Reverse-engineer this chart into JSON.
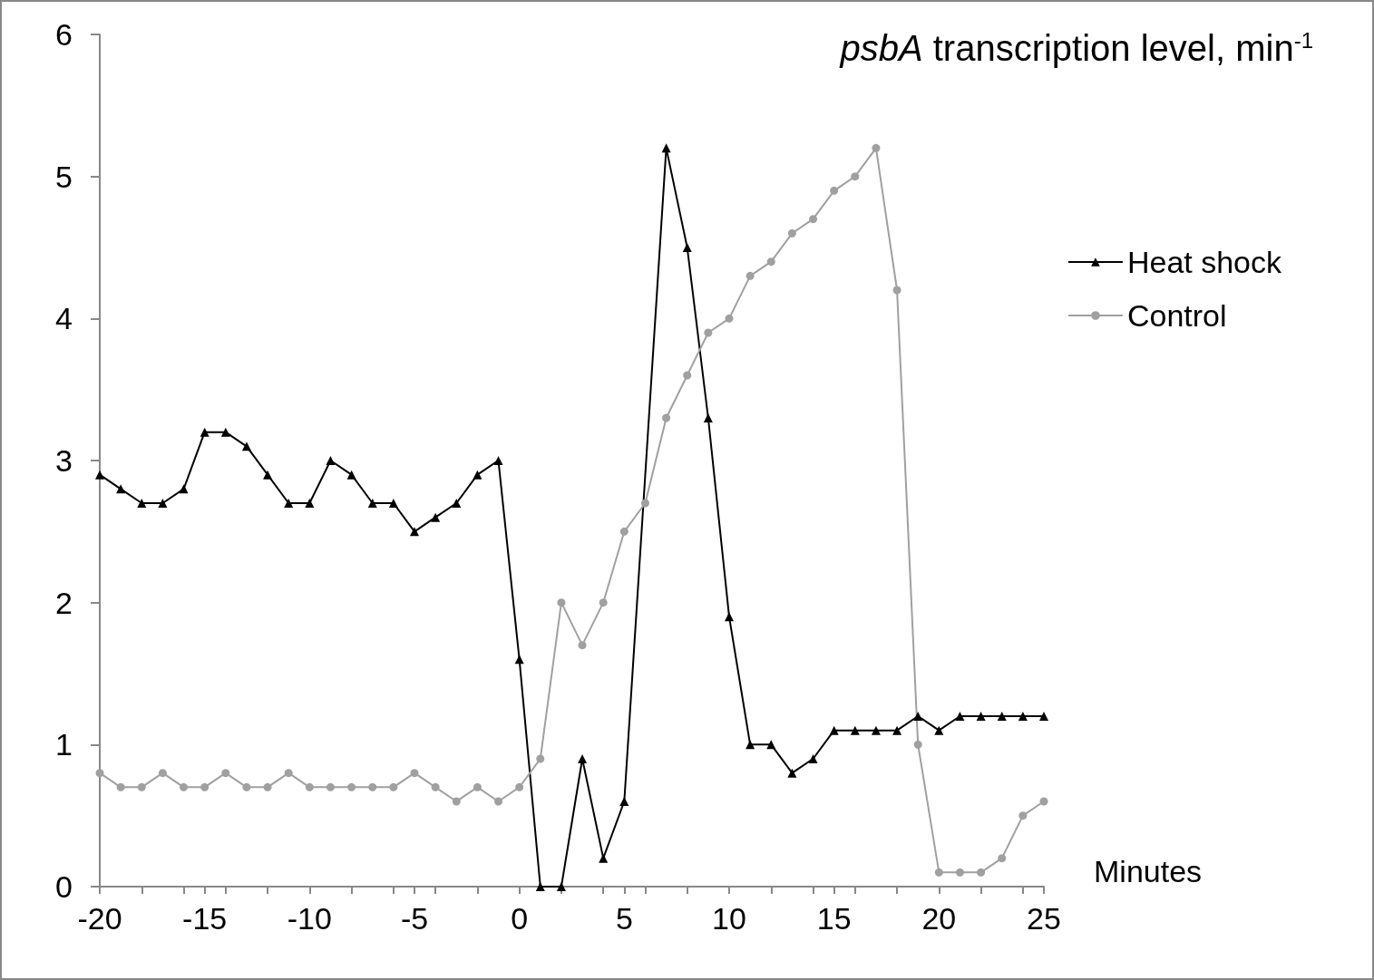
{
  "chart_data": {
    "type": "line",
    "title": "psbA transcription level, min$^{-1}$",
    "xlabel": "Minutes",
    "x": [
      -20,
      -19,
      -18,
      -17,
      -16,
      -15,
      -14,
      -13,
      -12,
      -11,
      -10,
      -9,
      -8,
      -7,
      -6,
      -5,
      -4,
      -3,
      -2,
      -1,
      0,
      1,
      2,
      3,
      4,
      5,
      6,
      7,
      8,
      9,
      10,
      11,
      12,
      13,
      14,
      15,
      16,
      17,
      18,
      19,
      20,
      21,
      22,
      23,
      24,
      25
    ],
    "series": [
      {
        "name": "Heat shock",
        "color": "#000000",
        "marker": "triangle",
        "values": [
          2.9,
          2.8,
          2.7,
          2.7,
          2.8,
          3.2,
          3.2,
          3.1,
          2.9,
          2.7,
          2.7,
          3.0,
          2.9,
          2.7,
          2.7,
          2.5,
          2.6,
          2.7,
          2.9,
          3.0,
          1.6,
          0,
          0,
          0.9,
          0.2,
          0.6,
          null,
          5.2,
          4.5,
          3.3,
          1.9,
          1.0,
          1.0,
          0.8,
          0.9,
          1.1,
          1.1,
          1.1,
          1.1,
          1.2,
          1.1,
          1.2,
          1.2,
          1.2,
          1.2,
          1.2
        ]
      },
      {
        "name": "Control",
        "color": "#a0a0a0",
        "marker": "circle",
        "values": [
          0.8,
          0.7,
          0.7,
          0.8,
          0.7,
          0.7,
          0.8,
          0.7,
          0.7,
          0.8,
          0.7,
          0.7,
          0.7,
          0.7,
          0.7,
          0.8,
          0.7,
          0.6,
          0.7,
          0.6,
          0.7,
          0.9,
          2.0,
          1.7,
          2.0,
          2.5,
          2.7,
          3.3,
          3.6,
          3.9,
          4.0,
          4.3,
          4.4,
          4.6,
          4.7,
          4.9,
          5.0,
          5.2,
          4.2,
          1.0,
          0.1,
          0.1,
          0.1,
          0.2,
          0.5,
          0.6
        ]
      }
    ],
    "xlim": [
      -20,
      25
    ],
    "xticks": [
      -20,
      -15,
      -10,
      -5,
      0,
      5,
      10,
      15,
      20,
      25
    ],
    "ylim": [
      0,
      6
    ],
    "yticks": [
      0,
      1,
      2,
      3,
      4,
      5,
      6
    ],
    "grid": false,
    "legend": "right",
    "line_style": "solid"
  }
}
